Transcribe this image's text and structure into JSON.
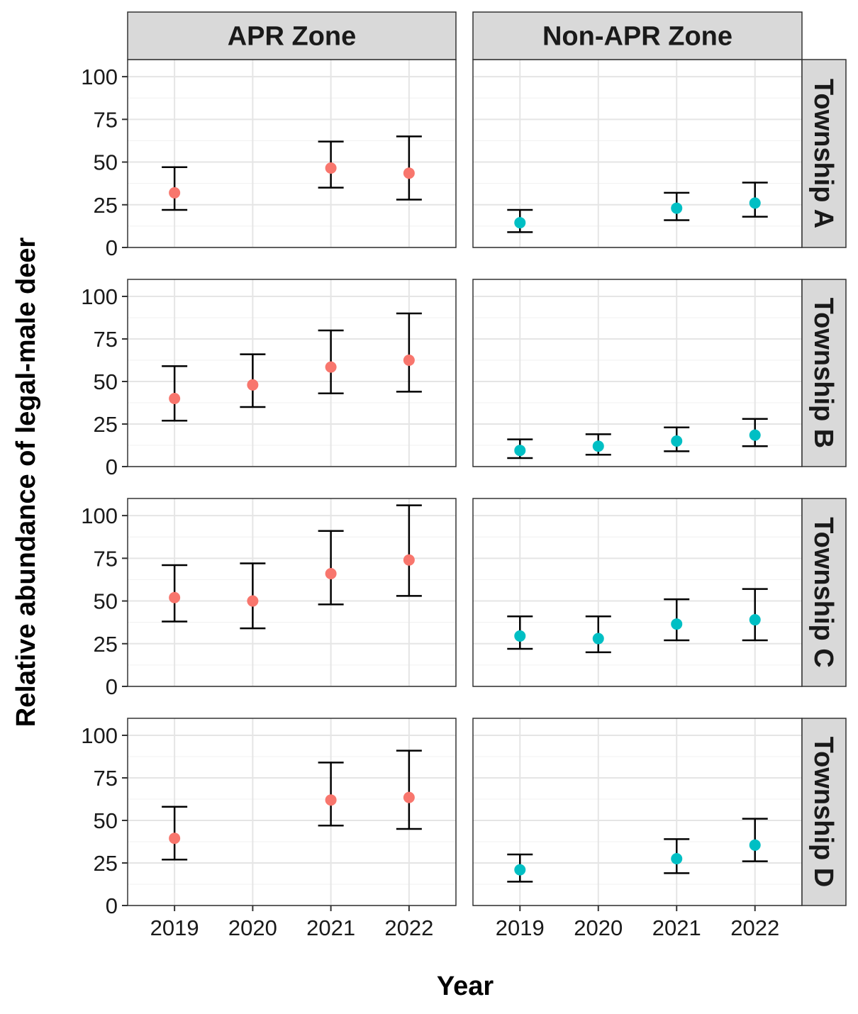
{
  "chart_data": {
    "type": "scatter",
    "title": "",
    "xlabel": "Year",
    "ylabel": "Relative abundance of legal-male deer",
    "x_ticks": [
      "2019",
      "2020",
      "2021",
      "2022"
    ],
    "y_ticks": [
      "0",
      "25",
      "50",
      "75",
      "100"
    ],
    "ylim": [
      0,
      110
    ],
    "columns": [
      "APR Zone",
      "Non-APR Zone"
    ],
    "rows": [
      "Township A",
      "Township B",
      "Township C",
      "Township D"
    ],
    "colors": {
      "APR Zone": "#F8766D",
      "Non-APR Zone": "#00BFC4"
    },
    "grid": true,
    "panels": [
      {
        "zone": "APR Zone",
        "township": "Township A",
        "points": [
          {
            "year": "2019",
            "estimate": 32,
            "lower": 22,
            "upper": 47
          },
          {
            "year": "2021",
            "estimate": 46.5,
            "lower": 35,
            "upper": 62
          },
          {
            "year": "2022",
            "estimate": 43.5,
            "lower": 28,
            "upper": 65
          }
        ]
      },
      {
        "zone": "Non-APR Zone",
        "township": "Township A",
        "points": [
          {
            "year": "2019",
            "estimate": 14.5,
            "lower": 9,
            "upper": 22
          },
          {
            "year": "2021",
            "estimate": 23,
            "lower": 16,
            "upper": 32
          },
          {
            "year": "2022",
            "estimate": 26,
            "lower": 18,
            "upper": 38
          }
        ]
      },
      {
        "zone": "APR Zone",
        "township": "Township B",
        "points": [
          {
            "year": "2019",
            "estimate": 40,
            "lower": 27,
            "upper": 59
          },
          {
            "year": "2020",
            "estimate": 48,
            "lower": 35,
            "upper": 66
          },
          {
            "year": "2021",
            "estimate": 58.5,
            "lower": 43,
            "upper": 80
          },
          {
            "year": "2022",
            "estimate": 62.5,
            "lower": 44,
            "upper": 90
          }
        ]
      },
      {
        "zone": "Non-APR Zone",
        "township": "Township B",
        "points": [
          {
            "year": "2019",
            "estimate": 9.5,
            "lower": 5,
            "upper": 16
          },
          {
            "year": "2020",
            "estimate": 12,
            "lower": 7,
            "upper": 19
          },
          {
            "year": "2021",
            "estimate": 15,
            "lower": 9,
            "upper": 23
          },
          {
            "year": "2022",
            "estimate": 18.5,
            "lower": 12,
            "upper": 28
          }
        ]
      },
      {
        "zone": "APR Zone",
        "township": "Township C",
        "points": [
          {
            "year": "2019",
            "estimate": 52,
            "lower": 38,
            "upper": 71
          },
          {
            "year": "2020",
            "estimate": 50,
            "lower": 34,
            "upper": 72
          },
          {
            "year": "2021",
            "estimate": 66,
            "lower": 48,
            "upper": 91
          },
          {
            "year": "2022",
            "estimate": 74,
            "lower": 53,
            "upper": 106
          }
        ]
      },
      {
        "zone": "Non-APR Zone",
        "township": "Township C",
        "points": [
          {
            "year": "2019",
            "estimate": 29.5,
            "lower": 22,
            "upper": 41
          },
          {
            "year": "2020",
            "estimate": 28,
            "lower": 20,
            "upper": 41
          },
          {
            "year": "2021",
            "estimate": 36.5,
            "lower": 27,
            "upper": 51
          },
          {
            "year": "2022",
            "estimate": 39,
            "lower": 27,
            "upper": 57
          }
        ]
      },
      {
        "zone": "APR Zone",
        "township": "Township D",
        "points": [
          {
            "year": "2019",
            "estimate": 39.5,
            "lower": 27,
            "upper": 58
          },
          {
            "year": "2021",
            "estimate": 62,
            "lower": 47,
            "upper": 84
          },
          {
            "year": "2022",
            "estimate": 63.5,
            "lower": 45,
            "upper": 91
          }
        ]
      },
      {
        "zone": "Non-APR Zone",
        "township": "Township D",
        "points": [
          {
            "year": "2019",
            "estimate": 21,
            "lower": 14,
            "upper": 30
          },
          {
            "year": "2021",
            "estimate": 27.5,
            "lower": 19,
            "upper": 39
          },
          {
            "year": "2022",
            "estimate": 35.5,
            "lower": 26,
            "upper": 51
          }
        ]
      }
    ]
  }
}
